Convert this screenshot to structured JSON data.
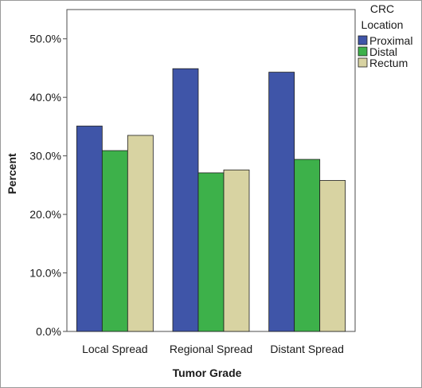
{
  "chart_data": {
    "type": "bar",
    "title": "",
    "xlabel": "Tumor Grade",
    "ylabel": "Percent",
    "categories": [
      "Local Spread",
      "Regional Spread",
      "Distant Spread"
    ],
    "ylim": [
      0,
      55
    ],
    "yticks": [
      0,
      10,
      20,
      30,
      40,
      50
    ],
    "ytick_labels": [
      "0.0%",
      "10.0%",
      "20.0%",
      "30.0%",
      "40.0%",
      "50.0%"
    ],
    "grid": false,
    "legend": {
      "title_lines": [
        "CRC",
        "Location"
      ],
      "placement": "top-right"
    },
    "series": [
      {
        "name": "Proximal",
        "color": "#3f55a8",
        "values": [
          35.1,
          44.9,
          44.3
        ]
      },
      {
        "name": "Distal",
        "color": "#3db14a",
        "values": [
          30.9,
          27.1,
          29.4
        ]
      },
      {
        "name": "Rectum",
        "color": "#d8d3a2",
        "values": [
          33.5,
          27.6,
          25.8
        ]
      }
    ]
  }
}
